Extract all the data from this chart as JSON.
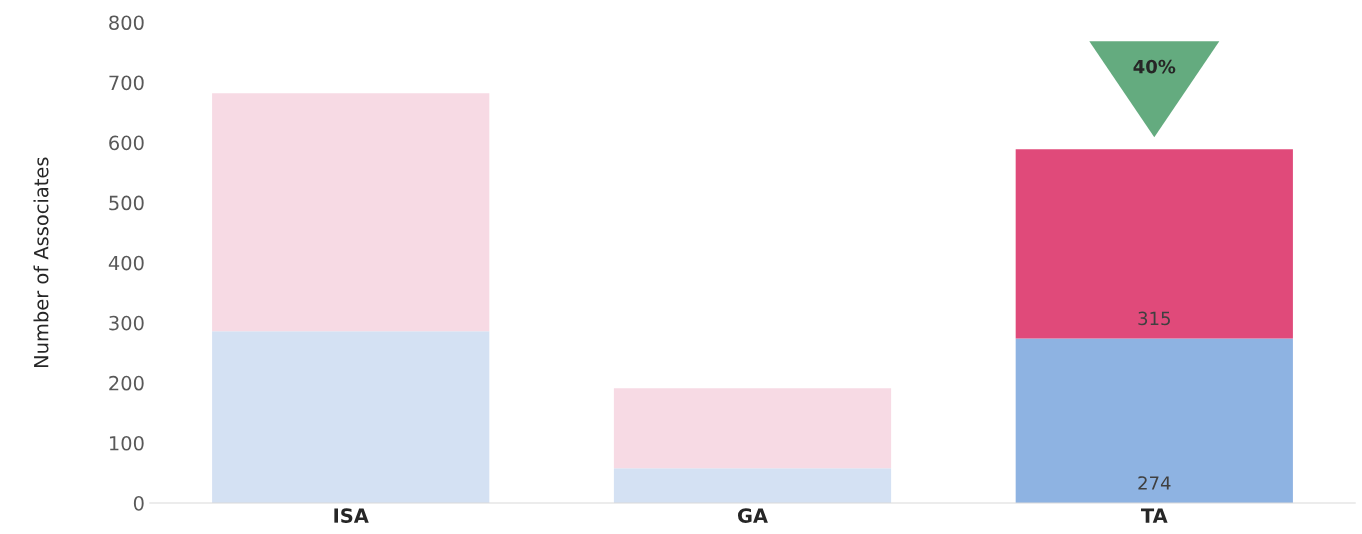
{
  "chart_data": {
    "type": "bar",
    "stacked": true,
    "ylabel": "Number of Associates",
    "categories": [
      "ISA",
      "GA",
      "TA"
    ],
    "series": [
      {
        "colors": [
          "#d4e1f3",
          "#d4e1f3",
          "#8eb3e2"
        ],
        "values": [
          286,
          58,
          274
        ],
        "value_labels": [
          null,
          null,
          "274"
        ]
      },
      {
        "colors": [
          "#f7dae4",
          "#f7dae4",
          "#e04a7a"
        ],
        "values": [
          396,
          133,
          315
        ],
        "value_labels": [
          null,
          null,
          "315"
        ]
      }
    ],
    "ylim": [
      0,
      800
    ],
    "yticks": [
      0,
      100,
      200,
      300,
      400,
      500,
      600,
      700,
      800
    ],
    "grid": false,
    "legend": false,
    "annotations": [
      "40%"
    ]
  }
}
